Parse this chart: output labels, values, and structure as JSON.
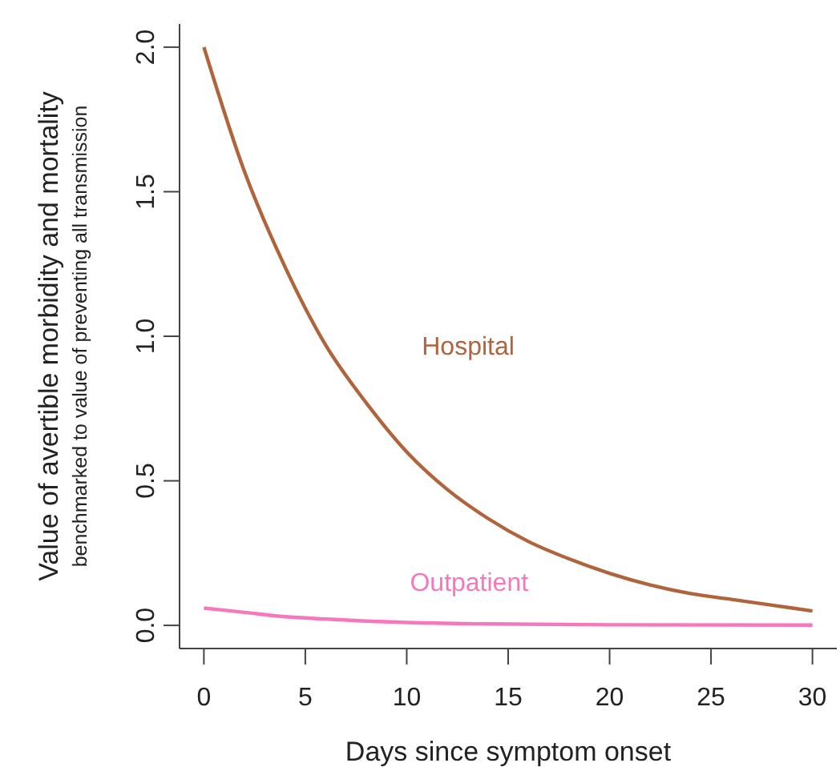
{
  "chart_data": {
    "type": "line",
    "xlabel": "Days since symptom onset",
    "ylabel": "Value of avertible morbidity and mortality\nbenchmarked to value of preventing all transmission",
    "xlim": [
      -1.2,
      31.2
    ],
    "xticks": [
      0,
      5,
      10,
      15,
      20,
      25,
      30
    ],
    "ylim": [
      -0.08,
      2.08
    ],
    "yticks": [
      {
        "value": 0,
        "label": "0.0"
      },
      {
        "value": 0.5,
        "label": "0.5"
      },
      {
        "value": 1,
        "label": "1.0"
      },
      {
        "value": 1.5,
        "label": "1.5"
      },
      {
        "value": 2,
        "label": "2.0"
      }
    ],
    "grid": false,
    "marker": "none",
    "line_style": "solid",
    "series": [
      {
        "name": "Hospital",
        "color": "#b0643c",
        "x": [
          0,
          2,
          4,
          6,
          8,
          10,
          12,
          14,
          16,
          18,
          20,
          22,
          24,
          26,
          28,
          30
        ],
        "values": [
          2.0,
          1.57,
          1.24,
          0.97,
          0.77,
          0.6,
          0.47,
          0.37,
          0.29,
          0.23,
          0.18,
          0.14,
          0.11,
          0.09,
          0.07,
          0.05
        ]
      },
      {
        "name": "Outpatient",
        "color": "#f777bd",
        "x": [
          0,
          2,
          4,
          6,
          8,
          10,
          14,
          20,
          30
        ],
        "values": [
          0.06,
          0.045,
          0.03,
          0.022,
          0.015,
          0.01,
          0.005,
          0.002,
          0.001
        ]
      }
    ]
  }
}
